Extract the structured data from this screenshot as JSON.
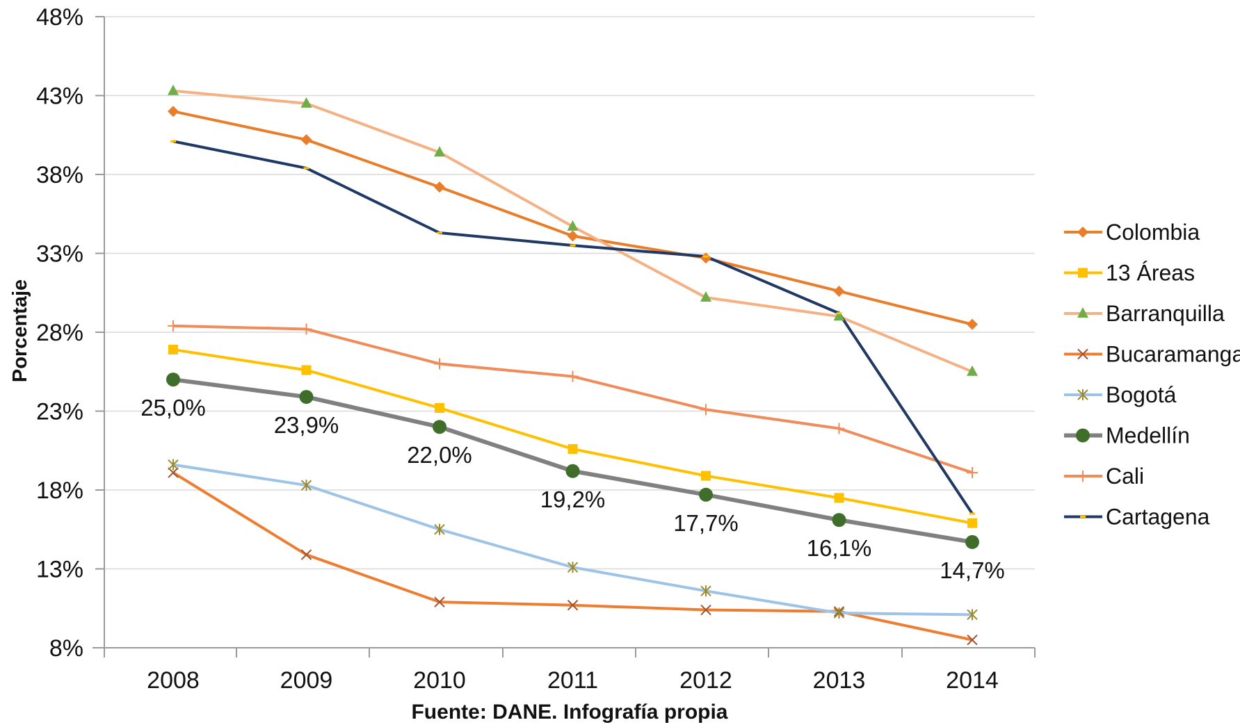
{
  "chart_data": {
    "type": "line",
    "title": "",
    "xlabel": "Fuente: DANE. Infografía propia",
    "ylabel": "Porcentaje",
    "categories": [
      "2008",
      "2009",
      "2010",
      "2011",
      "2012",
      "2013",
      "2014"
    ],
    "ylim": [
      8,
      48
    ],
    "yticks": [
      8,
      13,
      18,
      23,
      28,
      33,
      38,
      43,
      48
    ],
    "ytick_labels": [
      "8%",
      "13%",
      "18%",
      "23%",
      "28%",
      "33%",
      "38%",
      "43%",
      "48%"
    ],
    "grid": true,
    "legend_position": "right",
    "series": [
      {
        "name": "Colombia",
        "color": "#E87D2A",
        "marker": "diamond",
        "width": 4,
        "values": [
          42.0,
          40.2,
          37.2,
          34.1,
          32.7,
          30.6,
          28.5
        ]
      },
      {
        "name": "13 Áreas",
        "color": "#FFC000",
        "marker": "square",
        "width": 4,
        "values": [
          26.9,
          25.6,
          23.2,
          20.6,
          18.9,
          17.5,
          15.9
        ]
      },
      {
        "name": "Barranquilla",
        "color": "#F4B183",
        "marker": "triangle",
        "marker_color": "#70AD47",
        "width": 4,
        "values": [
          43.3,
          42.5,
          39.4,
          34.7,
          30.2,
          29.0,
          25.5
        ]
      },
      {
        "name": "Bucaramanga",
        "color": "#ED7D31",
        "marker": "x",
        "marker_color": "#A0522D",
        "width": 4,
        "values": [
          19.1,
          13.9,
          10.9,
          10.7,
          10.4,
          10.3,
          8.5
        ]
      },
      {
        "name": "Bogotá",
        "color": "#9DC3E6",
        "marker": "star",
        "marker_color": "#9C8A2A",
        "width": 4,
        "values": [
          19.6,
          18.3,
          15.5,
          13.1,
          11.6,
          10.2,
          10.1
        ]
      },
      {
        "name": "Medellín",
        "color": "#808080",
        "marker": "circle",
        "marker_color": "#3F6E2A",
        "width": 6,
        "values": [
          25.0,
          23.9,
          22.0,
          19.2,
          17.7,
          16.1,
          14.7
        ],
        "labels": [
          "25,0%",
          "23,9%",
          "22,0%",
          "19,2%",
          "17,7%",
          "16,1%",
          "14,7%"
        ]
      },
      {
        "name": "Cali",
        "color": "#F08C5A",
        "marker": "plus",
        "width": 4,
        "values": [
          28.4,
          28.2,
          26.0,
          25.2,
          23.1,
          21.9,
          19.1
        ]
      },
      {
        "name": "Cartagena",
        "color": "#1F3864",
        "marker": "dash",
        "marker_color": "#FFC000",
        "width": 4,
        "values": [
          40.1,
          38.4,
          34.3,
          33.5,
          32.8,
          29.2,
          16.5
        ]
      }
    ]
  }
}
